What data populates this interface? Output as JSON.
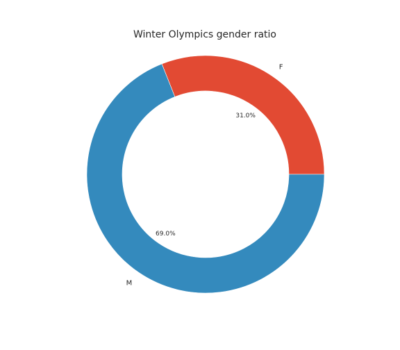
{
  "chart_data": {
    "type": "pie",
    "title": "Winter Olympics gender ratio",
    "donut": true,
    "start_angle_deg": 0,
    "counterclockwise": true,
    "slices": [
      {
        "label": "F",
        "value": 31.0,
        "pct_label": "31.0%",
        "color": "#e24a33"
      },
      {
        "label": "M",
        "value": 69.0,
        "pct_label": "69.0%",
        "color": "#348abd"
      }
    ],
    "legend": "none"
  }
}
